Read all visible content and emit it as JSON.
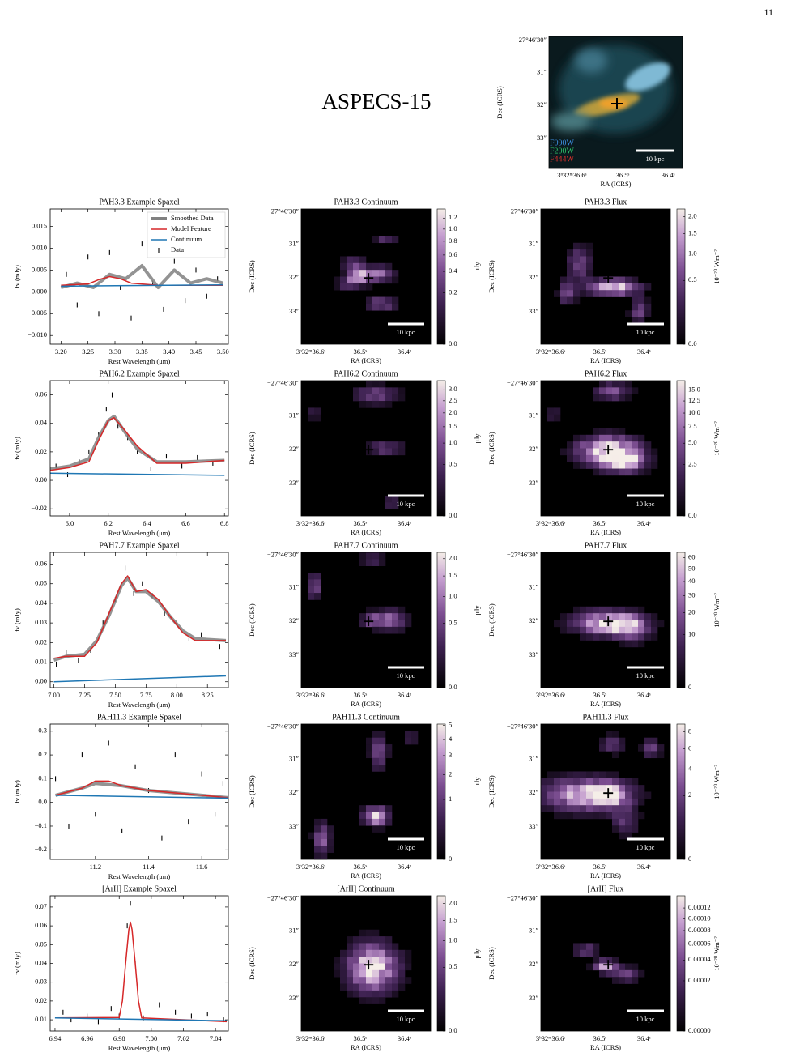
{
  "page_number": "11",
  "title": "ASPECS-15",
  "map_axes": {
    "xlabel": "RA (ICRS)",
    "ylabel": "Dec (ICRS)",
    "ra_ticks": [
      "3ʰ32ᵐ36.6ˢ",
      "36.5ˢ",
      "36.4ˢ"
    ],
    "dec_ticks": [
      "−27°46′30″",
      "31″",
      "32″",
      "33″"
    ],
    "scale_label": "10 kpc"
  },
  "rgb_image": {
    "filters": [
      {
        "name": "F090W",
        "color": "#3d8fe0"
      },
      {
        "name": "F200W",
        "color": "#2fc46a"
      },
      {
        "name": "F444W",
        "color": "#e0302c"
      }
    ]
  },
  "rows": [
    {
      "spectrum": {
        "title": "PAH3.3 Example Spaxel",
        "xlabel": "Rest Wavelength (μm)",
        "ylabel": "fν (mJy)",
        "legend": true,
        "xlim": [
          3.18,
          3.51
        ],
        "ylim": [
          -0.012,
          0.019
        ],
        "xticks": [
          {
            "value": 3.2,
            "label": "3.20"
          },
          3.25,
          {
            "value": 3.3,
            "label": "3.30"
          },
          3.35,
          {
            "value": 3.4,
            "label": "3.40"
          },
          3.45,
          {
            "value": 3.5,
            "label": "3.50"
          }
        ],
        "yticks": [
          {
            "value": -0.01,
            "label": "−0.010"
          },
          {
            "value": -0.005,
            "label": "−0.005"
          },
          {
            "value": 0,
            "label": "0.000"
          },
          0.005,
          {
            "value": 0.01,
            "label": "0.010"
          },
          0.015
        ],
        "series": [
          {
            "name": "Smoothed Data",
            "color": "#808080",
            "style": "line",
            "linewidth": 4,
            "x": [
              3.2,
              3.23,
              3.26,
              3.29,
              3.32,
              3.35,
              3.38,
              3.41,
              3.44,
              3.47,
              3.5
            ],
            "y": [
              0.001,
              0.002,
              0.001,
              0.004,
              0.003,
              0.006,
              0.001,
              0.005,
              0.002,
              0.003,
              0.002
            ]
          },
          {
            "name": "Model Feature",
            "color": "#d62728",
            "style": "line",
            "linewidth": 1.5,
            "x": [
              3.2,
              3.25,
              3.27,
              3.29,
              3.31,
              3.33,
              3.38,
              3.5
            ],
            "y": [
              0.0015,
              0.0018,
              0.0028,
              0.0035,
              0.003,
              0.002,
              0.0015,
              0.0015
            ]
          },
          {
            "name": "Continuum",
            "color": "#1f77b4",
            "style": "line",
            "linewidth": 1.5,
            "x": [
              3.2,
              3.5
            ],
            "y": [
              0.0013,
              0.0016
            ]
          },
          {
            "name": "Data",
            "color": "#000000",
            "style": "points",
            "x": [
              3.21,
              3.23,
              3.25,
              3.27,
              3.29,
              3.31,
              3.33,
              3.35,
              3.37,
              3.39,
              3.41,
              3.43,
              3.45,
              3.47,
              3.49
            ],
            "y": [
              0.004,
              -0.003,
              0.008,
              -0.005,
              0.009,
              0.001,
              -0.006,
              0.011,
              0.002,
              -0.004,
              0.007,
              -0.002,
              0.005,
              -0.001,
              0.003
            ]
          }
        ]
      },
      "continuum_map": {
        "title": "PAH3.3 Continuum",
        "cbar_label": "μJy",
        "cscale": "sqrt",
        "clim": [
          0,
          1.38
        ],
        "cticks": [
          {
            "value": 0,
            "label": "0.0"
          },
          0.2,
          0.4,
          0.6,
          0.8,
          {
            "value": 1,
            "label": "1.0"
          },
          1.2
        ]
      },
      "flux_map": {
        "title": "PAH3.3 Flux",
        "cbar_label": "10⁻²⁰ Wm⁻²",
        "cscale": "sqrt",
        "clim": [
          0,
          2.25
        ],
        "cticks": [
          {
            "value": 0,
            "label": "0.0"
          },
          0.5,
          {
            "value": 1,
            "label": "1.0"
          },
          1.5,
          {
            "value": 2,
            "label": "2.0"
          }
        ]
      }
    },
    {
      "spectrum": {
        "title": "PAH6.2 Example Spaxel",
        "xlabel": "Rest Wavelength (μm)",
        "ylabel": "fν (mJy)",
        "xlim": [
          5.9,
          6.82
        ],
        "ylim": [
          -0.025,
          0.07
        ],
        "xticks": [
          {
            "value": 6,
            "label": "6.0"
          },
          6.2,
          6.4,
          6.6,
          6.8
        ],
        "yticks": [
          {
            "value": -0.02,
            "label": "−0.02"
          },
          {
            "value": 0,
            "label": "0.00"
          },
          0.02,
          0.04,
          0.06
        ],
        "series": [
          {
            "color": "#808080",
            "style": "line",
            "linewidth": 4,
            "x": [
              5.9,
              6.0,
              6.1,
              6.15,
              6.2,
              6.23,
              6.28,
              6.35,
              6.45,
              6.6,
              6.8
            ],
            "y": [
              0.008,
              0.01,
              0.015,
              0.03,
              0.042,
              0.045,
              0.035,
              0.022,
              0.013,
              0.013,
              0.014
            ]
          },
          {
            "color": "#d62728",
            "style": "line",
            "linewidth": 1.5,
            "x": [
              5.9,
              6.0,
              6.1,
              6.15,
              6.2,
              6.23,
              6.28,
              6.35,
              6.45,
              6.6,
              6.8
            ],
            "y": [
              0.007,
              0.009,
              0.013,
              0.028,
              0.042,
              0.044,
              0.036,
              0.024,
              0.012,
              0.012,
              0.014
            ]
          },
          {
            "color": "#1f77b4",
            "style": "line",
            "linewidth": 1.5,
            "x": [
              5.9,
              6.8
            ],
            "y": [
              0.005,
              0.0035
            ]
          },
          {
            "color": "#000000",
            "style": "points",
            "x": [
              5.93,
              5.99,
              6.05,
              6.1,
              6.15,
              6.19,
              6.22,
              6.25,
              6.3,
              6.35,
              6.42,
              6.5,
              6.58,
              6.66,
              6.74
            ],
            "y": [
              0.01,
              0.004,
              0.013,
              0.02,
              0.032,
              0.05,
              0.06,
              0.038,
              0.03,
              0.02,
              0.008,
              0.017,
              0.01,
              0.016,
              0.012
            ]
          }
        ]
      },
      "continuum_map": {
        "title": "PAH6.2 Continuum",
        "cbar_label": "μJy",
        "cscale": "sqrt",
        "clim": [
          0,
          3.45
        ],
        "cticks": [
          {
            "value": 0,
            "label": "0.0"
          },
          0.5,
          {
            "value": 1,
            "label": "1.0"
          },
          1.5,
          {
            "value": 2,
            "label": "2.0"
          },
          2.5,
          {
            "value": 3,
            "label": "3.0"
          }
        ]
      },
      "flux_map": {
        "title": "PAH6.2 Flux",
        "cbar_label": "10⁻²⁰ Wm⁻²",
        "cscale": "sqrt",
        "clim": [
          0,
          17.3
        ],
        "cticks": [
          {
            "value": 0,
            "label": "0.0"
          },
          2.5,
          {
            "value": 5,
            "label": "5.0"
          },
          7.5,
          {
            "value": 10,
            "label": "10.0"
          },
          12.5,
          {
            "value": 15,
            "label": "15.0"
          }
        ]
      }
    },
    {
      "spectrum": {
        "title": "PAH7.7 Example Spaxel",
        "xlabel": "Rest Wavelength (μm)",
        "ylabel": "fν (mJy)",
        "xlim": [
          6.97,
          8.42
        ],
        "ylim": [
          -0.003,
          0.066
        ],
        "xticks": [
          {
            "value": 7,
            "label": "7.00"
          },
          7.25,
          {
            "value": 7.5,
            "label": "7.50"
          },
          7.75,
          {
            "value": 8,
            "label": "8.00"
          },
          8.25
        ],
        "yticks": [
          {
            "value": 0,
            "label": "0.00"
          },
          0.01,
          0.02,
          0.03,
          0.04,
          0.05,
          0.06
        ],
        "series": [
          {
            "color": "#808080",
            "style": "line",
            "linewidth": 4,
            "x": [
              7.0,
              7.1,
              7.25,
              7.35,
              7.45,
              7.55,
              7.6,
              7.67,
              7.75,
              7.85,
              7.95,
              8.05,
              8.15,
              8.4
            ],
            "y": [
              0.011,
              0.013,
              0.014,
              0.021,
              0.034,
              0.049,
              0.053,
              0.046,
              0.046,
              0.041,
              0.033,
              0.026,
              0.022,
              0.021
            ]
          },
          {
            "color": "#d62728",
            "style": "line",
            "linewidth": 1.5,
            "x": [
              7.0,
              7.1,
              7.25,
              7.35,
              7.45,
              7.55,
              7.6,
              7.67,
              7.75,
              7.85,
              7.95,
              8.05,
              8.15,
              8.4
            ],
            "y": [
              0.012,
              0.013,
              0.013,
              0.02,
              0.035,
              0.05,
              0.054,
              0.046,
              0.047,
              0.042,
              0.033,
              0.025,
              0.021,
              0.021
            ]
          },
          {
            "color": "#1f77b4",
            "style": "line",
            "linewidth": 1.5,
            "x": [
              7.0,
              8.4
            ],
            "y": [
              0,
              0.003
            ]
          },
          {
            "color": "#000000",
            "style": "points",
            "x": [
              7.02,
              7.1,
              7.2,
              7.3,
              7.4,
              7.5,
              7.58,
              7.65,
              7.72,
              7.8,
              7.9,
              8.0,
              8.1,
              8.2,
              8.35
            ],
            "y": [
              0.009,
              0.015,
              0.011,
              0.016,
              0.03,
              0.042,
              0.058,
              0.045,
              0.05,
              0.044,
              0.035,
              0.03,
              0.022,
              0.024,
              0.018
            ]
          }
        ]
      },
      "continuum_map": {
        "title": "PAH7.7 Continuum",
        "cbar_label": "μJy",
        "cscale": "sqrt",
        "clim": [
          0,
          2.2
        ],
        "cticks": [
          {
            "value": 0,
            "label": "0.0"
          },
          0.5,
          {
            "value": 1,
            "label": "1.0"
          },
          1.5,
          {
            "value": 2,
            "label": "2.0"
          }
        ]
      },
      "flux_map": {
        "title": "PAH7.7 Flux",
        "cbar_label": "10⁻²⁰ Wm⁻²",
        "cscale": "sqrt",
        "clim": [
          0,
          65
        ],
        "cticks": [
          0,
          10,
          20,
          30,
          40,
          50,
          60
        ]
      }
    },
    {
      "spectrum": {
        "title": "PAH11.3 Example Spaxel",
        "xlabel": "Rest Wavelength (μm)",
        "ylabel": "fν (mJy)",
        "xlim": [
          11.03,
          11.7
        ],
        "ylim": [
          -0.24,
          0.33
        ],
        "xticks": [
          11.2,
          11.4,
          11.6
        ],
        "yticks": [
          {
            "value": -0.2,
            "label": "−0.2"
          },
          {
            "value": -0.1,
            "label": "−0.1"
          },
          {
            "value": 0,
            "label": "0.0"
          },
          0.1,
          0.2,
          0.3
        ],
        "series": [
          {
            "color": "#808080",
            "style": "line",
            "linewidth": 4,
            "x": [
              11.05,
              11.15,
              11.2,
              11.3,
              11.4,
              11.5,
              11.6,
              11.7
            ],
            "y": [
              0.03,
              0.06,
              0.08,
              0.07,
              0.05,
              0.04,
              0.03,
              0.02
            ]
          },
          {
            "color": "#d62728",
            "style": "line",
            "linewidth": 1.5,
            "x": [
              11.05,
              11.15,
              11.2,
              11.25,
              11.3,
              11.4,
              11.5,
              11.7
            ],
            "y": [
              0.03,
              0.06,
              0.09,
              0.09,
              0.07,
              0.05,
              0.04,
              0.02
            ]
          },
          {
            "color": "#1f77b4",
            "style": "line",
            "linewidth": 1.5,
            "x": [
              11.05,
              11.7
            ],
            "y": [
              0.03,
              0.018
            ]
          },
          {
            "color": "#000000",
            "style": "points",
            "x": [
              11.05,
              11.1,
              11.15,
              11.2,
              11.25,
              11.3,
              11.35,
              11.4,
              11.45,
              11.5,
              11.55,
              11.6,
              11.65,
              11.68
            ],
            "y": [
              0.1,
              -0.1,
              0.2,
              -0.05,
              0.25,
              -0.12,
              0.15,
              0.05,
              -0.15,
              0.2,
              -0.08,
              0.12,
              -0.05,
              0.08
            ]
          }
        ]
      },
      "continuum_map": {
        "title": "PAH11.3 Continuum",
        "cbar_label": "μJy",
        "cscale": "sqrt",
        "clim": [
          0,
          5.1
        ],
        "cticks": [
          0,
          1,
          2,
          3,
          4,
          5
        ]
      },
      "flux_map": {
        "title": "PAH11.3 Flux",
        "cbar_label": "10⁻²⁰ Wm⁻²",
        "cscale": "sqrt",
        "clim": [
          0,
          9
        ],
        "cticks": [
          0,
          2,
          4,
          6,
          8
        ]
      }
    },
    {
      "spectrum": {
        "title": "[ArII] Example Spaxel",
        "xlabel": "Rest Wavelength (μm)",
        "ylabel": "fν (mJy)",
        "xlim": [
          6.937,
          7.048
        ],
        "ylim": [
          0.004,
          0.076
        ],
        "xticks": [
          6.94,
          6.96,
          6.98,
          {
            "value": 7,
            "label": "7.00"
          },
          7.02,
          7.04
        ],
        "yticks": [
          0.01,
          0.02,
          0.03,
          0.04,
          0.05,
          0.06,
          0.07
        ],
        "series": [
          {
            "color": "#d62728",
            "style": "line",
            "linewidth": 1.5,
            "x": [
              6.94,
              6.98,
              6.982,
              6.984,
              6.986,
              6.987,
              6.988,
              6.99,
              6.992,
              6.994,
              7.047
            ],
            "y": [
              0.011,
              0.0112,
              0.02,
              0.04,
              0.058,
              0.062,
              0.058,
              0.04,
              0.02,
              0.011,
              0.009
            ]
          },
          {
            "color": "#1f77b4",
            "style": "line",
            "linewidth": 1.5,
            "x": [
              6.94,
              7.047
            ],
            "y": [
              0.011,
              0.0095
            ]
          },
          {
            "color": "#000000",
            "style": "points",
            "x": [
              6.945,
              6.95,
              6.96,
              6.967,
              6.975,
              6.98,
              6.985,
              6.987,
              6.99,
              6.995,
              7.005,
              7.015,
              7.025,
              7.035,
              7.045
            ],
            "y": [
              0.014,
              0.01,
              0.012,
              0.009,
              0.016,
              0.012,
              0.06,
              0.072,
              0.04,
              0.011,
              0.018,
              0.014,
              0.012,
              0.013,
              0.01
            ]
          }
        ]
      },
      "continuum_map": {
        "title": "[ArII] Continuum",
        "cbar_label": "μJy",
        "cscale": "sqrt",
        "clim": [
          0,
          2.25
        ],
        "cticks": [
          {
            "value": 0,
            "label": "0.0"
          },
          0.5,
          {
            "value": 1,
            "label": "1.0"
          },
          1.5,
          {
            "value": 2,
            "label": "2.0"
          }
        ]
      },
      "flux_map": {
        "title": "[ArII] Flux",
        "cbar_label": "10⁻²⁰ Wm⁻²",
        "cscale": "sqrt",
        "clim": [
          0,
          0.000145
        ],
        "cticks": [
          {
            "value": 0,
            "label": "0.00000"
          },
          2e-05,
          4e-05,
          6e-05,
          8e-05,
          {
            "value": 0.0001,
            "label": "0.00010"
          },
          0.00012
        ]
      }
    }
  ]
}
